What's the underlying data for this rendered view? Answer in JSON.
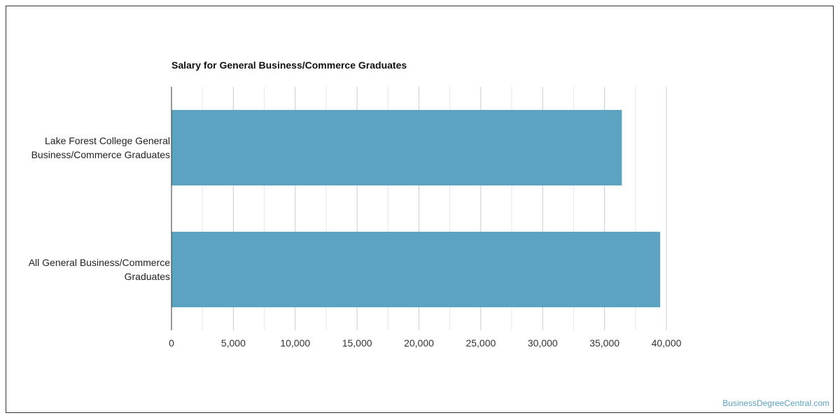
{
  "chart_data": {
    "type": "bar",
    "orientation": "horizontal",
    "title": "Salary for General Business/Commerce Graduates",
    "xlabel": "",
    "ylabel": "",
    "categories": [
      "Lake Forest College General Business/Commerce Graduates",
      "All General Business/Commerce Graduates"
    ],
    "category_lines": [
      [
        "Lake Forest College General",
        "Business/Commerce Graduates"
      ],
      [
        "All General Business/Commerce",
        "Graduates"
      ]
    ],
    "values": [
      36400,
      39500
    ],
    "xlim": [
      0,
      40000
    ],
    "ticks": [
      0,
      5000,
      10000,
      15000,
      20000,
      25000,
      30000,
      35000,
      40000
    ],
    "tick_labels": [
      "0",
      "5,000",
      "10,000",
      "15,000",
      "20,000",
      "25,000",
      "30,000",
      "35,000",
      "40,000"
    ],
    "grid": true,
    "legend": "none",
    "bar_color": "#5ba3c0"
  },
  "watermark": "BusinessDegreeCentral.com"
}
